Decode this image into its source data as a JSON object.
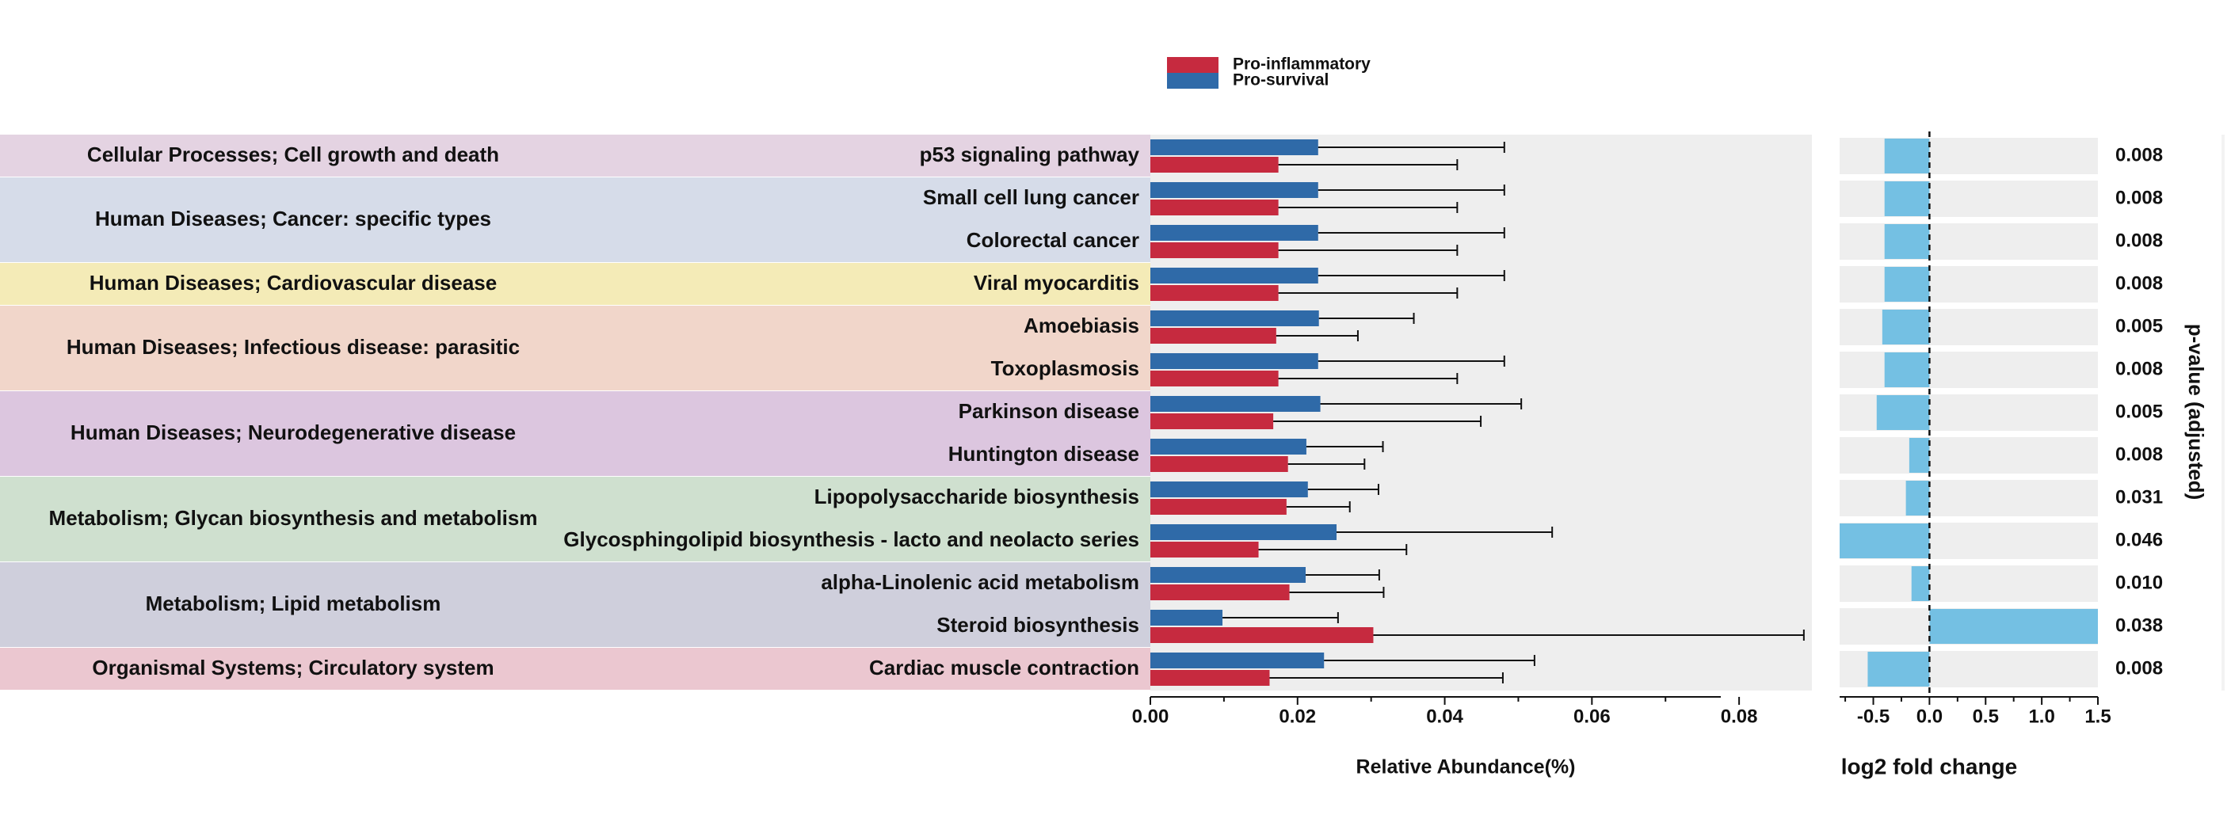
{
  "chart_data": [
    {
      "type": "bar",
      "orientation": "horizontal",
      "title": "",
      "xlabel": "Relative Abundance(%)",
      "ylabel": "",
      "xlim": [
        0,
        0.09
      ],
      "xticks": [
        "0.00",
        "0.02",
        "0.04",
        "0.06",
        "0.08"
      ],
      "legend": {
        "position": "top-center",
        "entries": [
          "Pro-inflammatory",
          "Pro-survival"
        ]
      },
      "categories": [
        "p53 signaling pathway",
        "Small cell lung cancer",
        "Colorectal cancer",
        "Viral myocarditis",
        "Amoebiasis",
        "Toxoplasmosis",
        "Parkinson disease",
        "Huntington disease",
        "Lipopolysaccharide biosynthesis",
        "Glycosphingolipid biosynthesis - lacto and neolacto series",
        "alpha-Linolenic acid metabolism",
        "Steroid biosynthesis",
        "Cardiac muscle contraction"
      ],
      "series": [
        {
          "name": "Pro-survival",
          "color": "#2f6aa8",
          "values": [
            0.0228,
            0.0228,
            0.0228,
            0.0228,
            0.0229,
            0.0228,
            0.0231,
            0.0212,
            0.0214,
            0.0253,
            0.0211,
            0.0098,
            0.0236
          ],
          "errors": [
            0.0253,
            0.0253,
            0.0253,
            0.0253,
            0.0129,
            0.0253,
            0.0273,
            0.0104,
            0.0096,
            0.0293,
            0.01,
            0.0157,
            0.0286
          ]
        },
        {
          "name": "Pro-inflammatory",
          "color": "#c62a3f",
          "values": [
            0.0174,
            0.0174,
            0.0174,
            0.0174,
            0.0171,
            0.0174,
            0.0167,
            0.0187,
            0.0185,
            0.0147,
            0.0189,
            0.0303,
            0.0162
          ],
          "errors": [
            0.0243,
            0.0243,
            0.0243,
            0.0243,
            0.0111,
            0.0243,
            0.0282,
            0.0104,
            0.0086,
            0.0201,
            0.0128,
            0.0585,
            0.0317
          ]
        }
      ],
      "groups": [
        {
          "label": "Cellular Processes; Cell growth and death",
          "rows": 1,
          "color": "#e4d3e2"
        },
        {
          "label": "Human Diseases; Cancer: specific types",
          "rows": 2,
          "color": "#d6dce9"
        },
        {
          "label": "Human Diseases; Cardiovascular disease",
          "rows": 1,
          "color": "#f4ebb7"
        },
        {
          "label": "Human Diseases; Infectious disease: parasitic",
          "rows": 2,
          "color": "#f1d6ca"
        },
        {
          "label": "Human Diseases; Neurodegenerative disease",
          "rows": 2,
          "color": "#dcc6df"
        },
        {
          "label": "Metabolism; Glycan biosynthesis and metabolism",
          "rows": 2,
          "color": "#cfe0cf"
        },
        {
          "label": "Metabolism; Lipid metabolism",
          "rows": 2,
          "color": "#cfcfdc"
        },
        {
          "label": "Organismal Systems; Circulatory system",
          "rows": 1,
          "color": "#ebc7d0"
        }
      ]
    },
    {
      "type": "bar",
      "orientation": "horizontal",
      "title": "",
      "xlabel": "log2 fold change",
      "xlim": [
        -0.8,
        1.5
      ],
      "xticks": [
        "-0.5",
        "0.0",
        "0.5",
        "1.0",
        "1.5"
      ],
      "reference_line": 0,
      "color": "#74c0e3",
      "values": [
        -0.4,
        -0.4,
        -0.4,
        -0.4,
        -0.42,
        -0.4,
        -0.47,
        -0.18,
        -0.21,
        -0.8,
        -0.16,
        1.6,
        -0.55
      ],
      "pvalue_label": "p-value (adjusted)",
      "pvalues": [
        "0.008",
        "0.008",
        "0.008",
        "0.008",
        "0.005",
        "0.008",
        "0.005",
        "0.008",
        "0.031",
        "0.046",
        "0.010",
        "0.038",
        "0.008"
      ]
    }
  ]
}
